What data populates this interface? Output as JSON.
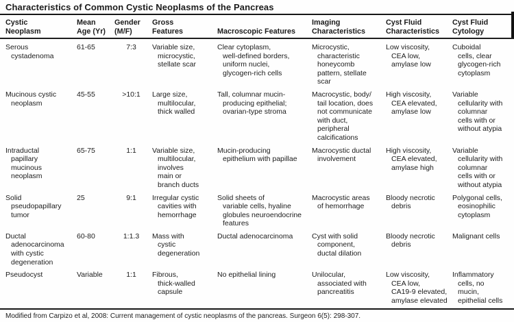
{
  "title": "Characteristics of Common Cystic Neoplasms of the Pancreas",
  "colors": {
    "background": "#fefefe",
    "text": "#1b1b1b",
    "rule": "#161616"
  },
  "table": {
    "columns": [
      {
        "id": "neoplasm",
        "label": "Cystic\nNeoplasm"
      },
      {
        "id": "mean_age",
        "label": "Mean\nAge (Yr)"
      },
      {
        "id": "gender",
        "label": "Gender\n(M/F)"
      },
      {
        "id": "gross",
        "label": "Gross\nFeatures"
      },
      {
        "id": "macroscopic",
        "label": "Macroscopic Features"
      },
      {
        "id": "imaging",
        "label": "Imaging\nCharacteristics"
      },
      {
        "id": "cyst_fluid",
        "label": "Cyst Fluid\nCharacteristics"
      },
      {
        "id": "cytology",
        "label": "Cyst Fluid\nCytology"
      }
    ],
    "rows": [
      {
        "neoplasm": "Serous\ncystadenoma",
        "mean_age": "61-65",
        "gender": "7:3",
        "gross": "Variable size,\nmicrocystic,\nstellate scar",
        "macroscopic": "Clear cytoplasm,\nwell-defined borders,\nuniform nuclei,\nglycogen-rich cells",
        "imaging": "Microcystic,\ncharacteristic\nhoneycomb\npattern, stellate\nscar",
        "cyst_fluid": "Low viscosity,\nCEA low,\namylase low",
        "cytology": "Cuboidal\ncells, clear\nglycogen-rich\ncytoplasm"
      },
      {
        "neoplasm": "Mucinous cystic\nneoplasm",
        "mean_age": "45-55",
        "gender": ">10:1",
        "gross": "Large size,\nmultilocular,\nthick walled",
        "macroscopic": "Tall, columnar mucin-\nproducing epithelial;\novarian-type stroma",
        "imaging": "Macrocystic, body/\ntail location, does\nnot communicate\nwith duct,\nperipheral\ncalcifications",
        "cyst_fluid": "High viscosity,\nCEA elevated,\namylase low",
        "cytology": "Variable\ncellularity with\ncolumnar\ncells with or\nwithout atypia"
      },
      {
        "neoplasm": "Intraductal\npapillary\nmucinous\nneoplasm",
        "mean_age": "65-75",
        "gender": "1:1",
        "gross": "Variable size,\nmultilocular,\ninvolves\nmain or\nbranch ducts",
        "macroscopic": "Mucin-producing\nepithelium with papillae",
        "imaging": "Macrocystic ductal\ninvolvement",
        "cyst_fluid": "High viscosity,\nCEA elevated,\namylase high",
        "cytology": "Variable\ncellularity with\ncolumnar\ncells with or\nwithout atypia"
      },
      {
        "neoplasm": "Solid\npseudopapillary\ntumor",
        "mean_age": "25",
        "gender": "9:1",
        "gross": "Irregular cystic\ncavities with\nhemorrhage",
        "macroscopic": "Solid sheets of\nvariable cells, hyaline\nglobules neuroendocrine\nfeatures",
        "imaging": "Macrocystic areas\nof hemorrhage",
        "cyst_fluid": "Bloody necrotic\ndebris",
        "cytology": "Polygonal cells,\neosinophilic\ncytoplasm"
      },
      {
        "neoplasm": "Ductal\nadenocarcinoma\nwith cystic\ndegeneration",
        "mean_age": "60-80",
        "gender": "1:1.3",
        "gross": "Mass with\ncystic\ndegeneration",
        "macroscopic": "Ductal adenocarcinoma",
        "imaging": "Cyst with solid\ncomponent,\nductal dilation",
        "cyst_fluid": "Bloody necrotic\ndebris",
        "cytology": "Malignant cells"
      },
      {
        "neoplasm": "Pseudocyst",
        "mean_age": "Variable",
        "gender": "1:1",
        "gross": "Fibrous,\nthick-walled\ncapsule",
        "macroscopic": "No epithelial lining",
        "imaging": "Unilocular,\nassociated with\npancreatitis",
        "cyst_fluid": "Low viscosity,\nCEA low,\nCA19-9 elevated,\namylase elevated",
        "cytology": "Inflammatory\ncells, no\nmucin,\nepithelial cells"
      }
    ]
  },
  "footnote": "Modified from Carpizo et al, 2008: Current management of cystic neoplasms of the pancreas. Surgeon 6(5): 298-307."
}
